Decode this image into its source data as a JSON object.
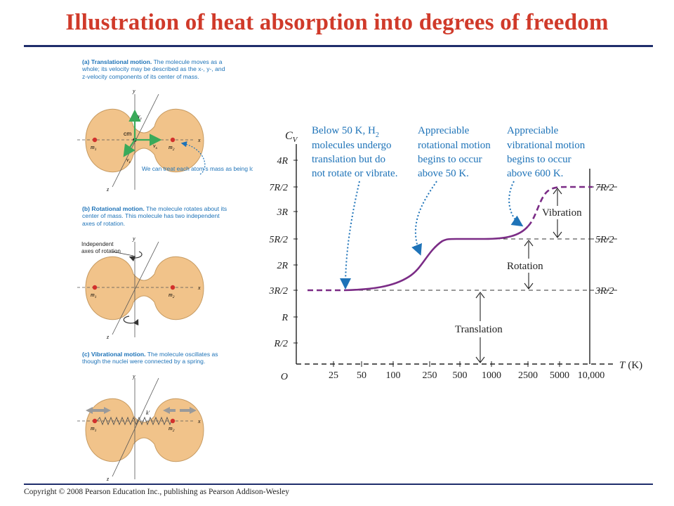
{
  "title": "Illustration of heat absorption into degrees of freedom",
  "copyright": "Copyright © 2008 Pearson Education Inc., publishing as Pearson Addison-Wesley",
  "colors": {
    "title": "#d03a2a",
    "rule": "#1f2d6b",
    "curve": "#7b2c86",
    "annotation": "#1e73b8",
    "molecule": "#f0c080",
    "atom": "#d2302c"
  },
  "panels": {
    "a": {
      "heading": "(a) Translational motion.",
      "body": "The molecule moves as a whole; its velocity may be described as the x-, y-, and z-velocity components of its center of mass.",
      "note": "We can treat each atom’s mass as being located at its nucleus.",
      "labels": {
        "y": "y",
        "x": "x",
        "z": "z",
        "cm": "cm",
        "vy": "v",
        "vx": "v",
        "vz": "v",
        "vy_sub": "y",
        "vx_sub": "x",
        "vz_sub": "z",
        "m1": "m",
        "m2": "m",
        "m1_sub": "1",
        "m2_sub": "2"
      }
    },
    "b": {
      "heading": "(b) Rotational motion.",
      "body": "The molecule rotates about its center of mass. This molecule has two independent axes of rotation.",
      "axes_note_1": "Independent",
      "axes_note_2": "axes of rotation",
      "labels": {
        "y": "y",
        "x": "x",
        "z": "z",
        "m1": "m",
        "m2": "m",
        "m1_sub": "1",
        "m2_sub": "2"
      }
    },
    "c": {
      "heading": "(c) Vibrational motion.",
      "body": "The molecule oscillates as though the nuclei were connected by a spring.",
      "labels": {
        "y": "y",
        "x": "x",
        "z": "z",
        "k": "k′",
        "m1": "m",
        "m2": "m",
        "m1_sub": "1",
        "m2_sub": "2"
      }
    }
  },
  "graph": {
    "ylabel": "C",
    "ylabel_sub": "V",
    "xlabel": "T",
    "xunit": "(K)",
    "yticks": [
      "4R",
      "7R/2",
      "3R",
      "5R/2",
      "2R",
      "3R/2",
      "R",
      "R/2",
      "O"
    ],
    "right_labels": [
      "7R/2",
      "5R/2",
      "3R/2"
    ],
    "xticks": [
      "25",
      "50",
      "100",
      "250",
      "500",
      "1000",
      "2500",
      "5000",
      "10,000"
    ],
    "annotations": {
      "a1": [
        "Below 50 K, H",
        "molecules undergo",
        "translation but do",
        "not rotate or vibrate."
      ],
      "a1_sub": "2",
      "a2": [
        "Appreciable",
        "rotational motion",
        "begins to occur",
        "above 50 K."
      ],
      "a3": [
        "Appreciable",
        "vibrational motion",
        "begins to occur",
        "above 600 K."
      ]
    },
    "regions": {
      "vibration": "Vibration",
      "rotation": "Rotation",
      "translation": "Translation"
    }
  }
}
